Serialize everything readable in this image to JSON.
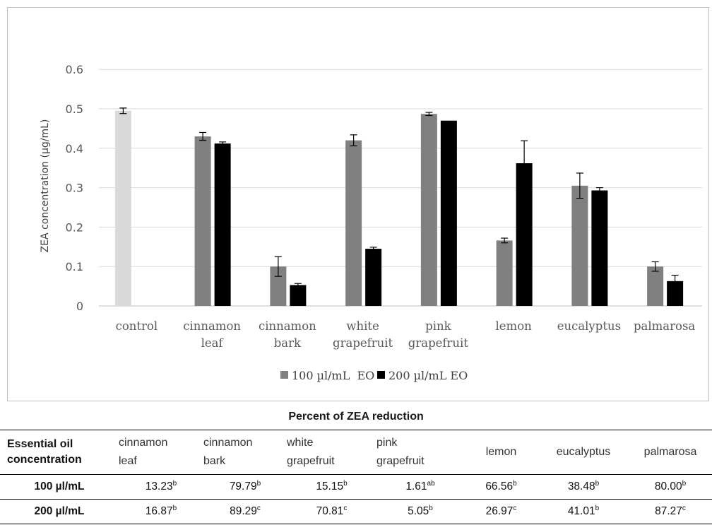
{
  "chart_data": {
    "type": "bar",
    "ylabel": "ZEA concentration (µg/mL)",
    "ylim": [
      0,
      0.7
    ],
    "yticks": [
      0,
      0.1,
      0.2,
      0.3,
      0.4,
      0.5,
      0.6
    ],
    "ytick_labels": [
      "0",
      "0.1",
      "0.2",
      "0.3",
      "0.4",
      "0.5",
      "0.6"
    ],
    "grid": true,
    "legend_position": "bottom",
    "categories": [
      [
        "control"
      ],
      [
        "cinnamon",
        "leaf"
      ],
      [
        "cinnamon",
        "bark"
      ],
      [
        "white",
        "grapefruit"
      ],
      [
        "pink",
        "grapefruit"
      ],
      [
        "lemon"
      ],
      [
        "eucalyptus"
      ],
      [
        "palmarosa"
      ]
    ],
    "control": {
      "value": 0.495,
      "error": 0.007,
      "color": "#d9d9d9"
    },
    "series": [
      {
        "name": "100 µl/mL  EO",
        "color": "#808080",
        "values": [
          null,
          0.43,
          0.1,
          0.42,
          0.487,
          0.166,
          0.305,
          0.1
        ],
        "errors": [
          null,
          0.01,
          0.025,
          0.014,
          0.004,
          0.006,
          0.032,
          0.012
        ]
      },
      {
        "name": "200 µl/mL EO",
        "color": "#000000",
        "values": [
          null,
          0.412,
          0.053,
          0.145,
          0.47,
          0.362,
          0.293,
          0.063
        ],
        "errors": [
          null,
          0.004,
          0.004,
          0.004,
          null,
          0.057,
          0.007,
          0.015
        ]
      }
    ]
  },
  "table": {
    "title": "Percent of ZEA reduction",
    "row_header": [
      "Essential oil",
      "concentration"
    ],
    "columns": [
      [
        "cinnamon",
        "leaf"
      ],
      [
        "cinnamon",
        "bark"
      ],
      [
        "white",
        "grapefruit"
      ],
      [
        "pink",
        "grapefruit"
      ],
      [
        "lemon"
      ],
      [
        "eucalyptus"
      ],
      [
        "palmarosa"
      ]
    ],
    "rows": [
      {
        "label": "100 µl/mL",
        "cells": [
          [
            "13.23",
            "b"
          ],
          [
            "79.79",
            "b"
          ],
          [
            "15.15",
            "b"
          ],
          [
            "1.61",
            "ab"
          ],
          [
            "66.56",
            "b"
          ],
          [
            "38.48",
            "b"
          ],
          [
            "80.00",
            "b"
          ]
        ]
      },
      {
        "label": "200 µl/mL",
        "cells": [
          [
            "16.87",
            "b"
          ],
          [
            "89.29",
            "c"
          ],
          [
            "70.81",
            "c"
          ],
          [
            "5.05",
            "b"
          ],
          [
            "26.97",
            "c"
          ],
          [
            "41.01",
            "b"
          ],
          [
            "87.27",
            "c"
          ]
        ]
      }
    ]
  }
}
